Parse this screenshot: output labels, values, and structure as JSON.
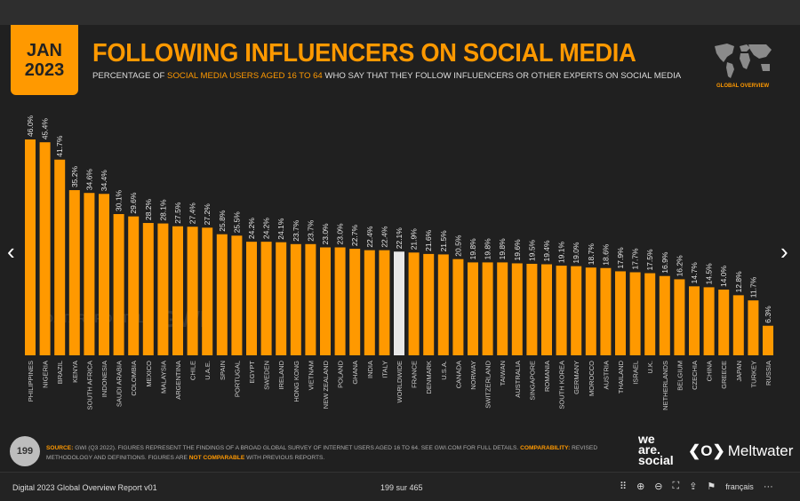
{
  "header": {
    "date_line1": "JAN",
    "date_line2": "2023",
    "title": "FOLLOWING INFLUENCERS ON SOCIAL MEDIA",
    "subtitle_pre": "PERCENTAGE OF ",
    "subtitle_highlight": "SOCIAL MEDIA USERS AGED 16 TO 64",
    "subtitle_post": " WHO SAY THAT THEY FOLLOW INFLUENCERS OR OTHER EXPERTS ON SOCIAL MEDIA",
    "section_tag": "GLOBAL OVERVIEW",
    "map_icon": "world-map-icon"
  },
  "watermarks": {
    "datareportal": "DATAREPORTAL",
    "gwi": "GWI."
  },
  "colors": {
    "accent": "#ff9900",
    "highlight_bar": "#e8e8e8",
    "background": "#202020"
  },
  "chart_data": {
    "type": "bar",
    "title": "FOLLOWING INFLUENCERS ON SOCIAL MEDIA",
    "ylabel": "",
    "xlabel": "",
    "ylim": [
      0,
      46
    ],
    "grid": false,
    "value_format": "percent, 1 decimal",
    "highlight_category": "WORLDWIDE",
    "categories": [
      "PHILIPPINES",
      "NIGERIA",
      "BRAZIL",
      "KENYA",
      "SOUTH AFRICA",
      "INDONESIA",
      "SAUDI ARABIA",
      "COLOMBIA",
      "MEXICO",
      "MALAYSIA",
      "ARGENTINA",
      "CHILE",
      "U.A.E.",
      "SPAIN",
      "PORTUGAL",
      "EGYPT",
      "SWEDEN",
      "IRELAND",
      "HONG KONG",
      "VIETNAM",
      "NEW ZEALAND",
      "POLAND",
      "GHANA",
      "INDIA",
      "ITALY",
      "WORLDWIDE",
      "FRANCE",
      "DENMARK",
      "U.S.A.",
      "CANADA",
      "NORWAY",
      "SWITZERLAND",
      "TAIWAN",
      "AUSTRALIA",
      "SINGAPORE",
      "ROMANIA",
      "SOUTH KOREA",
      "GERMANY",
      "MOROCCO",
      "AUSTRIA",
      "THAILAND",
      "ISRAEL",
      "U.K.",
      "NETHERLANDS",
      "BELGIUM",
      "CZECHIA",
      "CHINA",
      "GREECE",
      "JAPAN",
      "TURKEY",
      "RUSSIA"
    ],
    "values": [
      46.0,
      45.4,
      41.7,
      35.2,
      34.6,
      34.4,
      30.1,
      29.6,
      28.2,
      28.1,
      27.5,
      27.4,
      27.2,
      25.8,
      25.5,
      24.2,
      24.2,
      24.1,
      23.7,
      23.7,
      23.0,
      23.0,
      22.7,
      22.4,
      22.4,
      22.1,
      21.9,
      21.6,
      21.5,
      20.5,
      19.8,
      19.8,
      19.8,
      19.6,
      19.5,
      19.4,
      19.1,
      19.0,
      18.7,
      18.6,
      17.9,
      17.7,
      17.5,
      16.9,
      16.2,
      14.7,
      14.5,
      14.0,
      12.8,
      11.7,
      6.3
    ]
  },
  "footer": {
    "page_number": "199",
    "source_label": "SOURCE:",
    "source_text": " GWI (Q3 2022). FIGURES REPRESENT THE FINDINGS OF A BROAD GLOBAL SURVEY OF INTERNET USERS AGED 16 TO 64. SEE GWI.COM FOR FULL DETAILS. ",
    "comparability_label": "COMPARABILITY:",
    "comparability_text": " REVISED METHODOLOGY AND DEFINITIONS. FIGURES ARE ",
    "not_comparable": "NOT COMPARABLE",
    "comparability_end": " WITH PREVIOUS REPORTS.",
    "logo_we": "we",
    "logo_are": "are.",
    "logo_social": "social",
    "meltwater_mark": "❮O❯",
    "meltwater": "Meltwater"
  },
  "navigation": {
    "prev": "‹",
    "next": "›"
  },
  "toolbar": {
    "doc_title": "Digital 2023 Global Overview Report v01",
    "page_indicator": "199 sur 465",
    "grid_icon": "⠿",
    "zoom_in_icon": "⊕",
    "zoom_out_icon": "⊖",
    "fit_icon": "⛶",
    "share_icon": "⇪",
    "flag_icon": "⚑",
    "language": "français",
    "more_icon": "···"
  }
}
